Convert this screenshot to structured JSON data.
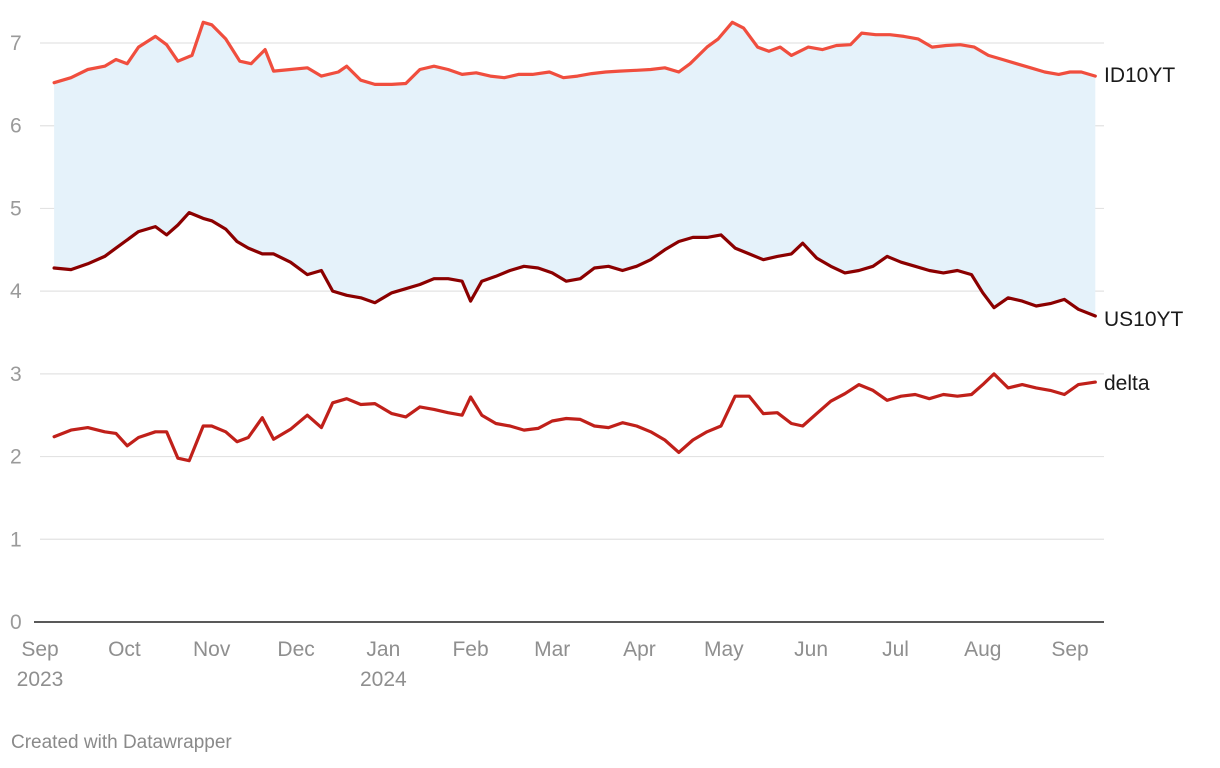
{
  "chart_data": {
    "type": "line",
    "x_axis": {
      "type": "date",
      "ticks": [
        {
          "date": "2023-09-01",
          "label": "Sep",
          "sublabel": "2023"
        },
        {
          "date": "2023-10-01",
          "label": "Oct",
          "sublabel": ""
        },
        {
          "date": "2023-11-01",
          "label": "Nov",
          "sublabel": ""
        },
        {
          "date": "2023-12-01",
          "label": "Dec",
          "sublabel": ""
        },
        {
          "date": "2024-01-01",
          "label": "Jan",
          "sublabel": "2024"
        },
        {
          "date": "2024-02-01",
          "label": "Feb",
          "sublabel": ""
        },
        {
          "date": "2024-03-01",
          "label": "Mar",
          "sublabel": ""
        },
        {
          "date": "2024-04-01",
          "label": "Apr",
          "sublabel": ""
        },
        {
          "date": "2024-05-01",
          "label": "May",
          "sublabel": ""
        },
        {
          "date": "2024-06-01",
          "label": "Jun",
          "sublabel": ""
        },
        {
          "date": "2024-07-01",
          "label": "Jul",
          "sublabel": ""
        },
        {
          "date": "2024-08-01",
          "label": "Aug",
          "sublabel": ""
        },
        {
          "date": "2024-09-01",
          "label": "Sep",
          "sublabel": ""
        }
      ]
    },
    "y_axis": {
      "ylim": [
        0,
        7.3
      ],
      "ticks": [
        "0",
        "1",
        "2",
        "3",
        "4",
        "5",
        "6",
        "7"
      ]
    },
    "grid": "horizontal",
    "range_fill": {
      "between": [
        "ID10YT",
        "US10YT"
      ],
      "color": "#e5f2fa"
    },
    "series": [
      {
        "name": "ID10YT",
        "color": "#f04e3e",
        "points": [
          [
            "2023-09-06",
            6.52
          ],
          [
            "2023-09-12",
            6.58
          ],
          [
            "2023-09-18",
            6.68
          ],
          [
            "2023-09-24",
            6.72
          ],
          [
            "2023-09-28",
            6.8
          ],
          [
            "2023-10-02",
            6.75
          ],
          [
            "2023-10-06",
            6.95
          ],
          [
            "2023-10-12",
            7.08
          ],
          [
            "2023-10-16",
            6.98
          ],
          [
            "2023-10-20",
            6.78
          ],
          [
            "2023-10-25",
            6.85
          ],
          [
            "2023-10-29",
            7.25
          ],
          [
            "2023-11-01",
            7.22
          ],
          [
            "2023-11-06",
            7.05
          ],
          [
            "2023-11-11",
            6.78
          ],
          [
            "2023-11-15",
            6.75
          ],
          [
            "2023-11-20",
            6.92
          ],
          [
            "2023-11-23",
            6.66
          ],
          [
            "2023-11-29",
            6.68
          ],
          [
            "2023-12-05",
            6.7
          ],
          [
            "2023-12-10",
            6.6
          ],
          [
            "2023-12-16",
            6.65
          ],
          [
            "2023-12-19",
            6.72
          ],
          [
            "2023-12-24",
            6.55
          ],
          [
            "2023-12-29",
            6.5
          ],
          [
            "2024-01-04",
            6.5
          ],
          [
            "2024-01-09",
            6.51
          ],
          [
            "2024-01-14",
            6.68
          ],
          [
            "2024-01-19",
            6.72
          ],
          [
            "2024-01-24",
            6.68
          ],
          [
            "2024-01-29",
            6.62
          ],
          [
            "2024-02-03",
            6.64
          ],
          [
            "2024-02-08",
            6.6
          ],
          [
            "2024-02-13",
            6.58
          ],
          [
            "2024-02-18",
            6.62
          ],
          [
            "2024-02-23",
            6.62
          ],
          [
            "2024-02-29",
            6.65
          ],
          [
            "2024-03-05",
            6.58
          ],
          [
            "2024-03-10",
            6.6
          ],
          [
            "2024-03-15",
            6.63
          ],
          [
            "2024-03-20",
            6.65
          ],
          [
            "2024-03-25",
            6.66
          ],
          [
            "2024-03-31",
            6.67
          ],
          [
            "2024-04-05",
            6.68
          ],
          [
            "2024-04-10",
            6.7
          ],
          [
            "2024-04-15",
            6.65
          ],
          [
            "2024-04-19",
            6.75
          ],
          [
            "2024-04-25",
            6.95
          ],
          [
            "2024-04-29",
            7.05
          ],
          [
            "2024-05-04",
            7.25
          ],
          [
            "2024-05-08",
            7.18
          ],
          [
            "2024-05-13",
            6.95
          ],
          [
            "2024-05-17",
            6.9
          ],
          [
            "2024-05-21",
            6.95
          ],
          [
            "2024-05-25",
            6.85
          ],
          [
            "2024-05-31",
            6.95
          ],
          [
            "2024-06-05",
            6.92
          ],
          [
            "2024-06-10",
            6.97
          ],
          [
            "2024-06-15",
            6.98
          ],
          [
            "2024-06-19",
            7.12
          ],
          [
            "2024-06-24",
            7.1
          ],
          [
            "2024-06-29",
            7.1
          ],
          [
            "2024-07-04",
            7.08
          ],
          [
            "2024-07-09",
            7.05
          ],
          [
            "2024-07-14",
            6.95
          ],
          [
            "2024-07-19",
            6.97
          ],
          [
            "2024-07-24",
            6.98
          ],
          [
            "2024-07-29",
            6.95
          ],
          [
            "2024-08-03",
            6.85
          ],
          [
            "2024-08-08",
            6.8
          ],
          [
            "2024-08-13",
            6.75
          ],
          [
            "2024-08-18",
            6.7
          ],
          [
            "2024-08-23",
            6.65
          ],
          [
            "2024-08-28",
            6.62
          ],
          [
            "2024-09-01",
            6.65
          ],
          [
            "2024-09-05",
            6.65
          ],
          [
            "2024-09-10",
            6.6
          ]
        ]
      },
      {
        "name": "US10YT",
        "color": "#8b0000",
        "points": [
          [
            "2023-09-06",
            4.28
          ],
          [
            "2023-09-12",
            4.26
          ],
          [
            "2023-09-18",
            4.33
          ],
          [
            "2023-09-24",
            4.42
          ],
          [
            "2023-09-28",
            4.52
          ],
          [
            "2023-10-02",
            4.62
          ],
          [
            "2023-10-06",
            4.72
          ],
          [
            "2023-10-12",
            4.78
          ],
          [
            "2023-10-16",
            4.68
          ],
          [
            "2023-10-20",
            4.8
          ],
          [
            "2023-10-24",
            4.95
          ],
          [
            "2023-10-29",
            4.88
          ],
          [
            "2023-11-01",
            4.85
          ],
          [
            "2023-11-06",
            4.75
          ],
          [
            "2023-11-10",
            4.6
          ],
          [
            "2023-11-14",
            4.52
          ],
          [
            "2023-11-19",
            4.45
          ],
          [
            "2023-11-23",
            4.45
          ],
          [
            "2023-11-29",
            4.35
          ],
          [
            "2023-12-05",
            4.2
          ],
          [
            "2023-12-10",
            4.25
          ],
          [
            "2023-12-14",
            4.0
          ],
          [
            "2023-12-19",
            3.95
          ],
          [
            "2023-12-24",
            3.92
          ],
          [
            "2023-12-29",
            3.86
          ],
          [
            "2024-01-04",
            3.98
          ],
          [
            "2024-01-09",
            4.03
          ],
          [
            "2024-01-14",
            4.08
          ],
          [
            "2024-01-19",
            4.15
          ],
          [
            "2024-01-24",
            4.15
          ],
          [
            "2024-01-29",
            4.12
          ],
          [
            "2024-02-01",
            3.88
          ],
          [
            "2024-02-05",
            4.12
          ],
          [
            "2024-02-10",
            4.18
          ],
          [
            "2024-02-15",
            4.25
          ],
          [
            "2024-02-20",
            4.3
          ],
          [
            "2024-02-25",
            4.28
          ],
          [
            "2024-03-01",
            4.22
          ],
          [
            "2024-03-06",
            4.12
          ],
          [
            "2024-03-11",
            4.15
          ],
          [
            "2024-03-16",
            4.28
          ],
          [
            "2024-03-21",
            4.3
          ],
          [
            "2024-03-26",
            4.25
          ],
          [
            "2024-03-31",
            4.3
          ],
          [
            "2024-04-05",
            4.38
          ],
          [
            "2024-04-10",
            4.5
          ],
          [
            "2024-04-15",
            4.6
          ],
          [
            "2024-04-20",
            4.65
          ],
          [
            "2024-04-25",
            4.65
          ],
          [
            "2024-04-30",
            4.68
          ],
          [
            "2024-05-05",
            4.52
          ],
          [
            "2024-05-10",
            4.45
          ],
          [
            "2024-05-15",
            4.38
          ],
          [
            "2024-05-20",
            4.42
          ],
          [
            "2024-05-25",
            4.45
          ],
          [
            "2024-05-29",
            4.58
          ],
          [
            "2024-06-03",
            4.4
          ],
          [
            "2024-06-08",
            4.3
          ],
          [
            "2024-06-13",
            4.22
          ],
          [
            "2024-06-18",
            4.25
          ],
          [
            "2024-06-23",
            4.3
          ],
          [
            "2024-06-28",
            4.42
          ],
          [
            "2024-07-03",
            4.35
          ],
          [
            "2024-07-08",
            4.3
          ],
          [
            "2024-07-13",
            4.25
          ],
          [
            "2024-07-18",
            4.22
          ],
          [
            "2024-07-23",
            4.25
          ],
          [
            "2024-07-28",
            4.2
          ],
          [
            "2024-08-01",
            3.98
          ],
          [
            "2024-08-05",
            3.8
          ],
          [
            "2024-08-10",
            3.92
          ],
          [
            "2024-08-15",
            3.88
          ],
          [
            "2024-08-20",
            3.82
          ],
          [
            "2024-08-25",
            3.85
          ],
          [
            "2024-08-30",
            3.9
          ],
          [
            "2024-09-04",
            3.78
          ],
          [
            "2024-09-10",
            3.7
          ]
        ]
      },
      {
        "name": "delta",
        "color": "#c0201a",
        "points": [
          [
            "2023-09-06",
            2.24
          ],
          [
            "2023-09-12",
            2.32
          ],
          [
            "2023-09-18",
            2.35
          ],
          [
            "2023-09-24",
            2.3
          ],
          [
            "2023-09-28",
            2.28
          ],
          [
            "2023-10-02",
            2.13
          ],
          [
            "2023-10-06",
            2.23
          ],
          [
            "2023-10-12",
            2.3
          ],
          [
            "2023-10-16",
            2.3
          ],
          [
            "2023-10-20",
            1.98
          ],
          [
            "2023-10-24",
            1.95
          ],
          [
            "2023-10-29",
            2.37
          ],
          [
            "2023-11-01",
            2.37
          ],
          [
            "2023-11-06",
            2.3
          ],
          [
            "2023-11-10",
            2.18
          ],
          [
            "2023-11-14",
            2.23
          ],
          [
            "2023-11-19",
            2.47
          ],
          [
            "2023-11-23",
            2.21
          ],
          [
            "2023-11-29",
            2.33
          ],
          [
            "2023-12-05",
            2.5
          ],
          [
            "2023-12-10",
            2.35
          ],
          [
            "2023-12-14",
            2.65
          ],
          [
            "2023-12-19",
            2.7
          ],
          [
            "2023-12-24",
            2.63
          ],
          [
            "2023-12-29",
            2.64
          ],
          [
            "2024-01-04",
            2.52
          ],
          [
            "2024-01-09",
            2.48
          ],
          [
            "2024-01-14",
            2.6
          ],
          [
            "2024-01-19",
            2.57
          ],
          [
            "2024-01-24",
            2.53
          ],
          [
            "2024-01-29",
            2.5
          ],
          [
            "2024-02-01",
            2.72
          ],
          [
            "2024-02-05",
            2.5
          ],
          [
            "2024-02-10",
            2.4
          ],
          [
            "2024-02-15",
            2.37
          ],
          [
            "2024-02-20",
            2.32
          ],
          [
            "2024-02-25",
            2.34
          ],
          [
            "2024-03-01",
            2.43
          ],
          [
            "2024-03-06",
            2.46
          ],
          [
            "2024-03-11",
            2.45
          ],
          [
            "2024-03-16",
            2.37
          ],
          [
            "2024-03-21",
            2.35
          ],
          [
            "2024-03-26",
            2.41
          ],
          [
            "2024-03-31",
            2.37
          ],
          [
            "2024-04-05",
            2.3
          ],
          [
            "2024-04-10",
            2.2
          ],
          [
            "2024-04-15",
            2.05
          ],
          [
            "2024-04-20",
            2.2
          ],
          [
            "2024-04-25",
            2.3
          ],
          [
            "2024-04-30",
            2.37
          ],
          [
            "2024-05-05",
            2.73
          ],
          [
            "2024-05-10",
            2.73
          ],
          [
            "2024-05-15",
            2.52
          ],
          [
            "2024-05-20",
            2.53
          ],
          [
            "2024-05-25",
            2.4
          ],
          [
            "2024-05-29",
            2.37
          ],
          [
            "2024-06-03",
            2.52
          ],
          [
            "2024-06-08",
            2.67
          ],
          [
            "2024-06-13",
            2.76
          ],
          [
            "2024-06-18",
            2.87
          ],
          [
            "2024-06-23",
            2.8
          ],
          [
            "2024-06-28",
            2.68
          ],
          [
            "2024-07-03",
            2.73
          ],
          [
            "2024-07-08",
            2.75
          ],
          [
            "2024-07-13",
            2.7
          ],
          [
            "2024-07-18",
            2.75
          ],
          [
            "2024-07-23",
            2.73
          ],
          [
            "2024-07-28",
            2.75
          ],
          [
            "2024-08-01",
            2.87
          ],
          [
            "2024-08-05",
            3.0
          ],
          [
            "2024-08-10",
            2.83
          ],
          [
            "2024-08-15",
            2.87
          ],
          [
            "2024-08-20",
            2.83
          ],
          [
            "2024-08-25",
            2.8
          ],
          [
            "2024-08-30",
            2.75
          ],
          [
            "2024-09-04",
            2.87
          ],
          [
            "2024-09-10",
            2.9
          ]
        ]
      }
    ]
  },
  "footer": {
    "credit": "Created with Datawrapper"
  }
}
